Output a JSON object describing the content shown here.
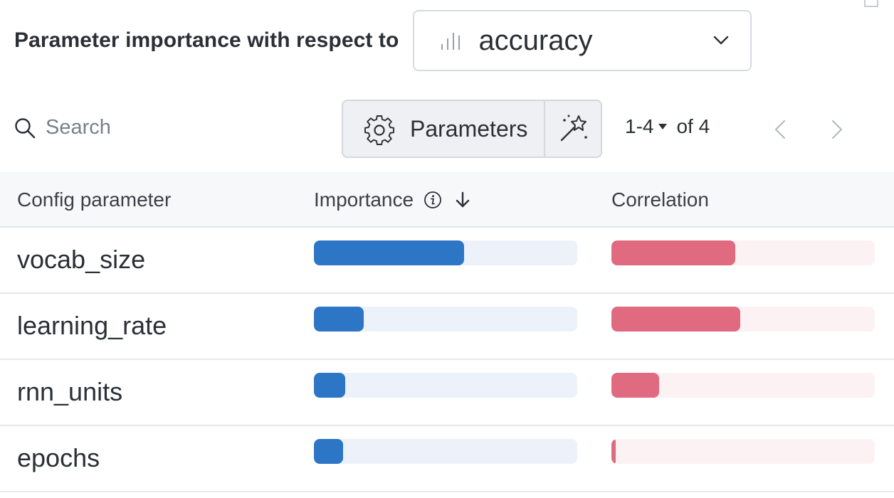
{
  "header": {
    "label": "Parameter importance with respect to",
    "metric": {
      "value": "accuracy",
      "icon": "bar-chart-icon"
    }
  },
  "toolbar": {
    "search": {
      "placeholder": "Search",
      "value": ""
    },
    "parameters_label": "Parameters",
    "pagination": {
      "range": "1-4",
      "of_label": "of 4"
    }
  },
  "table": {
    "columns": [
      "Config parameter",
      "Importance",
      "Correlation"
    ],
    "sort": "importance-descending",
    "rows": [
      {
        "name": "vocab_size",
        "importance": 0.57,
        "correlation": 0.47
      },
      {
        "name": "learning_rate",
        "importance": 0.19,
        "correlation": 0.49
      },
      {
        "name": "rnn_units",
        "importance": 0.12,
        "correlation": 0.18
      },
      {
        "name": "epochs",
        "importance": 0.11,
        "correlation": 0.015
      }
    ]
  },
  "colors": {
    "importance_bar": "#2c76c5",
    "importance_track": "#edf2fa",
    "correlation_bar": "#e06a80",
    "correlation_track": "#fcf2f4",
    "border": "#d7dbe1"
  }
}
